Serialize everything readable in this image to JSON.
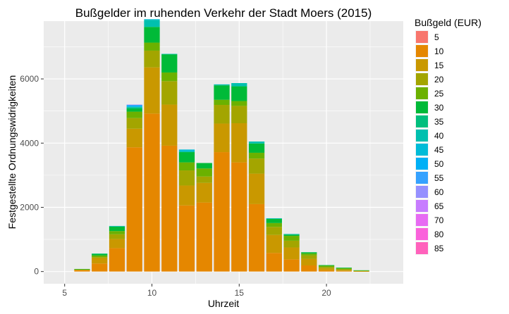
{
  "chart_data": {
    "type": "bar",
    "stacked": true,
    "title": "Bußgelder im ruhenden Verkehr der Stadt Moers (2015)",
    "xlabel": "Uhrzeit",
    "ylabel": "Festgestellte Ordnungswidrigkeiten",
    "xlim": [
      3.8,
      24.4
    ],
    "ylim": [
      -380,
      7800
    ],
    "x_ticks": [
      5,
      10,
      15,
      20
    ],
    "x_tick_labels": [
      "5",
      "10",
      "15",
      "20"
    ],
    "y_ticks": [
      0,
      2000,
      4000,
      6000
    ],
    "y_tick_labels": [
      "0",
      "2000",
      "4000",
      "6000"
    ],
    "grid": true,
    "legend_position": "right",
    "legend_title": "Bußgeld (EUR)",
    "hours": [
      6,
      7,
      8,
      9,
      10,
      11,
      12,
      13,
      14,
      15,
      16,
      17,
      18,
      19,
      20,
      21,
      22
    ],
    "series": [
      {
        "name": "5",
        "color": "#F8766D",
        "values": [
          0,
          0,
          0,
          0,
          0,
          0,
          0,
          0,
          0,
          0,
          0,
          0,
          0,
          0,
          0,
          0,
          0
        ]
      },
      {
        "name": "10",
        "color": "#E58700",
        "values": [
          40,
          250,
          730,
          3870,
          4920,
          3920,
          2060,
          2150,
          3720,
          3400,
          2100,
          580,
          380,
          190,
          40,
          20,
          5
        ]
      },
      {
        "name": "15",
        "color": "#C99800",
        "values": [
          20,
          170,
          280,
          580,
          1440,
          1280,
          620,
          610,
          890,
          1220,
          950,
          560,
          370,
          200,
          60,
          30,
          8
        ]
      },
      {
        "name": "20",
        "color": "#A3A500",
        "values": [
          5,
          30,
          150,
          330,
          520,
          730,
          470,
          200,
          580,
          540,
          470,
          250,
          210,
          110,
          40,
          20,
          7
        ]
      },
      {
        "name": "25",
        "color": "#6BB100",
        "values": [
          5,
          50,
          100,
          200,
          250,
          270,
          250,
          250,
          160,
          150,
          180,
          120,
          150,
          60,
          40,
          30,
          15
        ]
      },
      {
        "name": "30",
        "color": "#00BA38",
        "values": [
          10,
          50,
          140,
          90,
          490,
          560,
          320,
          170,
          450,
          460,
          290,
          130,
          40,
          40,
          20,
          20,
          5
        ]
      },
      {
        "name": "35",
        "color": "#00BF7D",
        "values": [
          0,
          10,
          0,
          40,
          0,
          10,
          0,
          0,
          0,
          0,
          0,
          0,
          0,
          0,
          0,
          0,
          0
        ]
      },
      {
        "name": "40",
        "color": "#00C0AF",
        "values": [
          0,
          0,
          20,
          20,
          220,
          10,
          30,
          0,
          30,
          100,
          60,
          20,
          20,
          0,
          0,
          0,
          0
        ]
      },
      {
        "name": "45",
        "color": "#00BCD8",
        "values": [
          0,
          0,
          0,
          0,
          20,
          0,
          50,
          0,
          0,
          0,
          0,
          0,
          0,
          0,
          0,
          0,
          0
        ]
      },
      {
        "name": "50",
        "color": "#00B0F6",
        "values": [
          0,
          0,
          0,
          50,
          0,
          0,
          0,
          0,
          0,
          0,
          0,
          0,
          0,
          0,
          0,
          0,
          0
        ]
      },
      {
        "name": "55",
        "color": "#35A2FF",
        "values": [
          0,
          0,
          0,
          0,
          0,
          0,
          0,
          0,
          0,
          0,
          0,
          0,
          0,
          0,
          0,
          0,
          0
        ]
      },
      {
        "name": "60",
        "color": "#9590FF",
        "values": [
          0,
          0,
          0,
          20,
          0,
          0,
          0,
          0,
          0,
          0,
          0,
          0,
          0,
          0,
          0,
          0,
          0
        ]
      },
      {
        "name": "65",
        "color": "#C77CFF",
        "values": [
          0,
          0,
          0,
          0,
          0,
          0,
          0,
          0,
          0,
          0,
          0,
          0,
          0,
          0,
          0,
          0,
          0
        ]
      },
      {
        "name": "70",
        "color": "#E76BF3",
        "values": [
          0,
          0,
          0,
          0,
          0,
          0,
          0,
          0,
          0,
          0,
          0,
          0,
          0,
          0,
          0,
          0,
          0
        ]
      },
      {
        "name": "80",
        "color": "#FA62DB",
        "values": [
          0,
          0,
          0,
          0,
          0,
          0,
          0,
          0,
          0,
          0,
          0,
          0,
          0,
          0,
          0,
          0,
          0
        ]
      },
      {
        "name": "85",
        "color": "#FF62BC",
        "values": [
          0,
          0,
          0,
          0,
          0,
          0,
          0,
          0,
          0,
          0,
          0,
          0,
          0,
          0,
          0,
          0,
          0
        ]
      }
    ],
    "panel_background": "#EBEBEB",
    "grid_color": "#FFFFFF"
  }
}
